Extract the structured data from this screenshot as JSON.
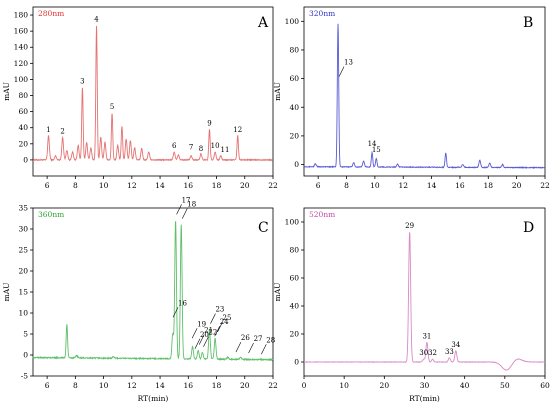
{
  "chart_data": [
    {
      "panel": "A",
      "type": "line",
      "wavelength_label": "280nm",
      "ylabel": "mAU",
      "xlabel": "",
      "xlim": [
        5,
        22
      ],
      "ylim": [
        -20,
        190
      ],
      "xticks": [
        6,
        8,
        10,
        12,
        14,
        16,
        18,
        20,
        22
      ],
      "yticks": [
        0,
        20,
        40,
        60,
        80,
        100,
        120,
        140,
        160,
        180
      ],
      "colors": {
        "line": "#e47272",
        "label": "#e03030"
      },
      "baseline": 0,
      "noise": 1.2,
      "peaks": [
        {
          "x": 6.1,
          "y": 30,
          "w": 0.06
        },
        {
          "x": 6.6,
          "y": 5,
          "w": 0.06
        },
        {
          "x": 7.1,
          "y": 28,
          "w": 0.06
        },
        {
          "x": 7.4,
          "y": 12,
          "w": 0.06
        },
        {
          "x": 7.8,
          "y": 10,
          "w": 0.06
        },
        {
          "x": 8.2,
          "y": 18,
          "w": 0.06
        },
        {
          "x": 8.5,
          "y": 90,
          "w": 0.05
        },
        {
          "x": 8.8,
          "y": 22,
          "w": 0.06
        },
        {
          "x": 9.1,
          "y": 15,
          "w": 0.06
        },
        {
          "x": 9.5,
          "y": 167,
          "w": 0.05
        },
        {
          "x": 9.8,
          "y": 28,
          "w": 0.06
        },
        {
          "x": 10.1,
          "y": 22,
          "w": 0.06
        },
        {
          "x": 10.6,
          "y": 58,
          "w": 0.05
        },
        {
          "x": 11.0,
          "y": 18,
          "w": 0.06
        },
        {
          "x": 11.3,
          "y": 42,
          "w": 0.05
        },
        {
          "x": 11.6,
          "y": 26,
          "w": 0.06
        },
        {
          "x": 11.9,
          "y": 24,
          "w": 0.06
        },
        {
          "x": 12.2,
          "y": 15,
          "w": 0.06
        },
        {
          "x": 12.7,
          "y": 14,
          "w": 0.06
        },
        {
          "x": 13.2,
          "y": 10,
          "w": 0.06
        },
        {
          "x": 15.0,
          "y": 10,
          "w": 0.06
        },
        {
          "x": 15.3,
          "y": 6,
          "w": 0.06
        },
        {
          "x": 16.2,
          "y": 5,
          "w": 0.06
        },
        {
          "x": 16.9,
          "y": 8,
          "w": 0.06
        },
        {
          "x": 17.5,
          "y": 38,
          "w": 0.05
        },
        {
          "x": 17.9,
          "y": 10,
          "w": 0.06
        },
        {
          "x": 18.3,
          "y": 5,
          "w": 0.06
        },
        {
          "x": 19.5,
          "y": 30,
          "w": 0.05
        }
      ],
      "peak_labels": [
        {
          "text": "1",
          "x": 6.1,
          "y": 30
        },
        {
          "text": "2",
          "x": 7.1,
          "y": 28
        },
        {
          "text": "3",
          "x": 8.5,
          "y": 90
        },
        {
          "text": "4",
          "x": 9.5,
          "y": 167
        },
        {
          "text": "5",
          "x": 10.6,
          "y": 58
        },
        {
          "text": "6",
          "x": 15.0,
          "y": 10
        },
        {
          "text": "7",
          "x": 16.2,
          "y": 8
        },
        {
          "text": "8",
          "x": 16.9,
          "y": 6
        },
        {
          "text": "9",
          "x": 17.5,
          "y": 38
        },
        {
          "text": "10",
          "x": 17.9,
          "y": 10
        },
        {
          "text": "11",
          "x": 18.6,
          "y": 5
        },
        {
          "text": "12",
          "x": 19.5,
          "y": 30
        }
      ],
      "panel_letter": "A"
    },
    {
      "panel": "B",
      "type": "line",
      "wavelength_label": "320nm",
      "ylabel": "mAU",
      "xlabel": "",
      "xlim": [
        5,
        22
      ],
      "ylim": [
        -8,
        110
      ],
      "xticks": [
        6,
        8,
        10,
        12,
        14,
        16,
        18,
        20,
        22
      ],
      "yticks": [
        0,
        20,
        40,
        60,
        80,
        100
      ],
      "colors": {
        "line": "#5a5ad6",
        "label": "#3030c8"
      },
      "baseline": -1.5,
      "noise": 0.5,
      "peaks": [
        {
          "x": 5.8,
          "y": 2,
          "w": 0.06
        },
        {
          "x": 7.4,
          "y": 100,
          "w": 0.05
        },
        {
          "x": 8.5,
          "y": 3,
          "w": 0.06
        },
        {
          "x": 9.2,
          "y": 4,
          "w": 0.06
        },
        {
          "x": 9.8,
          "y": 10,
          "w": 0.05
        },
        {
          "x": 10.1,
          "y": 6,
          "w": 0.05
        },
        {
          "x": 11.6,
          "y": 2,
          "w": 0.06
        },
        {
          "x": 15.0,
          "y": 10,
          "w": 0.05
        },
        {
          "x": 16.2,
          "y": 2,
          "w": 0.06
        },
        {
          "x": 17.4,
          "y": 5,
          "w": 0.06
        },
        {
          "x": 18.1,
          "y": 3,
          "w": 0.06
        },
        {
          "x": 19.0,
          "y": 2,
          "w": 0.06
        }
      ],
      "peak_labels": [
        {
          "text": "13",
          "x": 7.4,
          "y": 60
        },
        {
          "text": "14",
          "x": 9.8,
          "y": 10
        },
        {
          "text": "15",
          "x": 10.1,
          "y": 6
        }
      ],
      "panel_letter": "B"
    },
    {
      "panel": "C",
      "type": "line",
      "wavelength_label": "360nm",
      "ylabel": "mAU",
      "xlabel": "RT(min)",
      "xlim": [
        5,
        22
      ],
      "ylim": [
        -5,
        35
      ],
      "xticks": [
        6,
        8,
        10,
        12,
        14,
        16,
        18,
        20,
        22
      ],
      "yticks": [
        -5,
        0,
        5,
        10,
        15,
        20,
        25,
        30,
        35
      ],
      "colors": {
        "line": "#5fbf6a",
        "label": "#2aa032"
      },
      "baseline": -0.6,
      "noise": 0.25,
      "peaks": [
        {
          "x": 7.4,
          "y": 8,
          "w": 0.05
        },
        {
          "x": 8.1,
          "y": 0.6,
          "w": 0.06
        },
        {
          "x": 10.7,
          "y": 0.4,
          "w": 0.06
        },
        {
          "x": 14.9,
          "y": 6,
          "w": 0.06
        },
        {
          "x": 15.1,
          "y": 33,
          "w": 0.06
        },
        {
          "x": 15.5,
          "y": 32,
          "w": 0.06
        },
        {
          "x": 16.3,
          "y": 3,
          "w": 0.06
        },
        {
          "x": 16.7,
          "y": 2,
          "w": 0.06
        },
        {
          "x": 17.0,
          "y": 1.5,
          "w": 0.06
        },
        {
          "x": 17.5,
          "y": 7,
          "w": 0.06
        },
        {
          "x": 17.9,
          "y": 5,
          "w": 0.06
        },
        {
          "x": 18.8,
          "y": 0.5,
          "w": 0.06
        },
        {
          "x": 19.7,
          "y": 0.5,
          "w": 0.06
        }
      ],
      "peak_labels": [
        {
          "text": "16",
          "x": 14.85,
          "y": 8.5
        },
        {
          "text": "17",
          "x": 15.1,
          "y": 33
        },
        {
          "text": "18",
          "x": 15.5,
          "y": 32
        },
        {
          "text": "19",
          "x": 16.2,
          "y": 3.5
        },
        {
          "text": "20",
          "x": 16.4,
          "y": 1.0
        },
        {
          "text": "21",
          "x": 16.7,
          "y": 2
        },
        {
          "text": "22",
          "x": 17.0,
          "y": 1.5
        },
        {
          "text": "23",
          "x": 17.5,
          "y": 7
        },
        {
          "text": "24",
          "x": 17.8,
          "y": 4
        },
        {
          "text": "25",
          "x": 18.0,
          "y": 5
        },
        {
          "text": "26",
          "x": 19.3,
          "y": 0.2
        },
        {
          "text": "27",
          "x": 20.2,
          "y": 0.0
        },
        {
          "text": "28",
          "x": 21.1,
          "y": -0.3
        }
      ],
      "panel_letter": "C"
    },
    {
      "panel": "D",
      "type": "line",
      "wavelength_label": "520nm",
      "ylabel": "mAU",
      "xlabel": "RT(min)",
      "xlim": [
        0,
        60
      ],
      "ylim": [
        -10,
        110
      ],
      "xticks": [
        0,
        10,
        20,
        30,
        40,
        50,
        60
      ],
      "yticks": [
        0,
        20,
        40,
        60,
        80,
        100
      ],
      "colors": {
        "line": "#d98ac6",
        "label": "#c04aa8"
      },
      "baseline": 0,
      "noise": 0.3,
      "peaks": [
        {
          "x": 26.3,
          "y": 93,
          "w": 0.25
        },
        {
          "x": 29.8,
          "y": 2,
          "w": 0.25
        },
        {
          "x": 30.6,
          "y": 14,
          "w": 0.25
        },
        {
          "x": 32.0,
          "y": 2,
          "w": 0.25
        },
        {
          "x": 36.2,
          "y": 3,
          "w": 0.25
        },
        {
          "x": 37.8,
          "y": 8,
          "w": 0.25
        }
      ],
      "dip": {
        "x": 50.5,
        "y": -6,
        "w": 1.2
      },
      "peak_labels": [
        {
          "text": "29",
          "x": 26.3,
          "y": 93
        },
        {
          "text": "30",
          "x": 29.8,
          "y": 2
        },
        {
          "text": "31",
          "x": 30.6,
          "y": 14
        },
        {
          "text": "32",
          "x": 32.0,
          "y": 2
        },
        {
          "text": "33",
          "x": 36.2,
          "y": 3
        },
        {
          "text": "34",
          "x": 37.8,
          "y": 8
        }
      ],
      "panel_letter": "D"
    }
  ]
}
